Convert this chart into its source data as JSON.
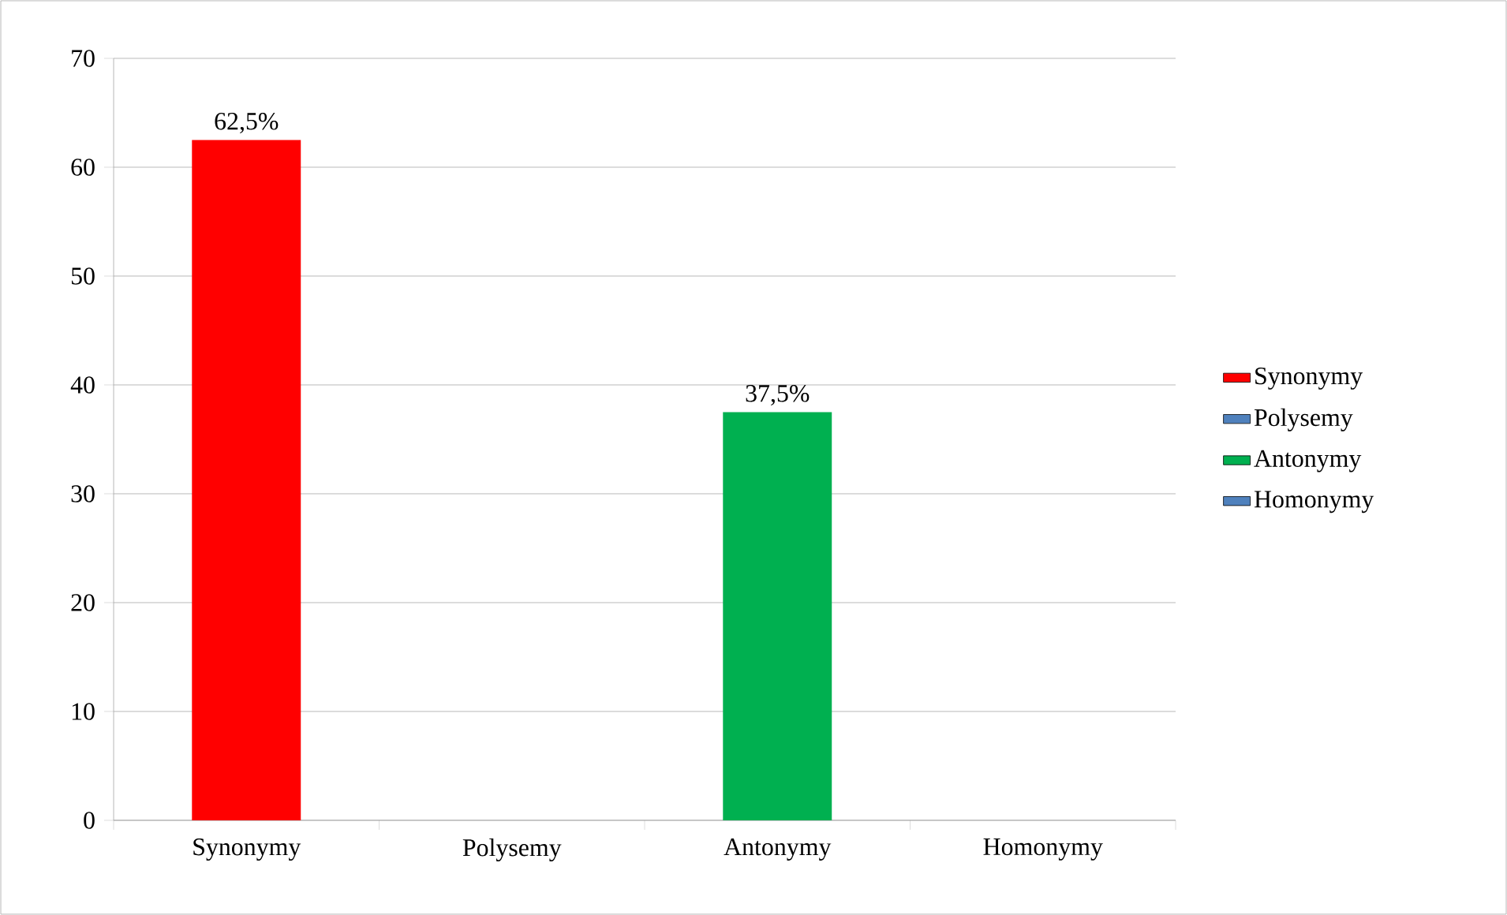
{
  "chart_data": {
    "type": "bar",
    "categories": [
      "Synonymy",
      "Polysemy",
      "Antonymy",
      "Homonymy"
    ],
    "series": [
      {
        "name": "Synonymy",
        "color": "#ff0000",
        "values": [
          62.5,
          null,
          null,
          null
        ],
        "value_labels": [
          "62,5%",
          null,
          null,
          null
        ]
      },
      {
        "name": "Polysemy",
        "color": "#4f81bd",
        "values": [
          null,
          0,
          null,
          null
        ]
      },
      {
        "name": "Antonymy",
        "color": "#00b050",
        "values": [
          null,
          null,
          37.5,
          null
        ],
        "value_labels": [
          null,
          null,
          "37,5%",
          null
        ]
      },
      {
        "name": "Homonymy",
        "color": "#4f81bd",
        "values": [
          null,
          null,
          null,
          0
        ]
      }
    ],
    "ylim": [
      0,
      70
    ],
    "yticks": [
      0,
      10,
      20,
      30,
      40,
      50,
      60,
      70
    ],
    "grid": "y",
    "legend": "right"
  }
}
